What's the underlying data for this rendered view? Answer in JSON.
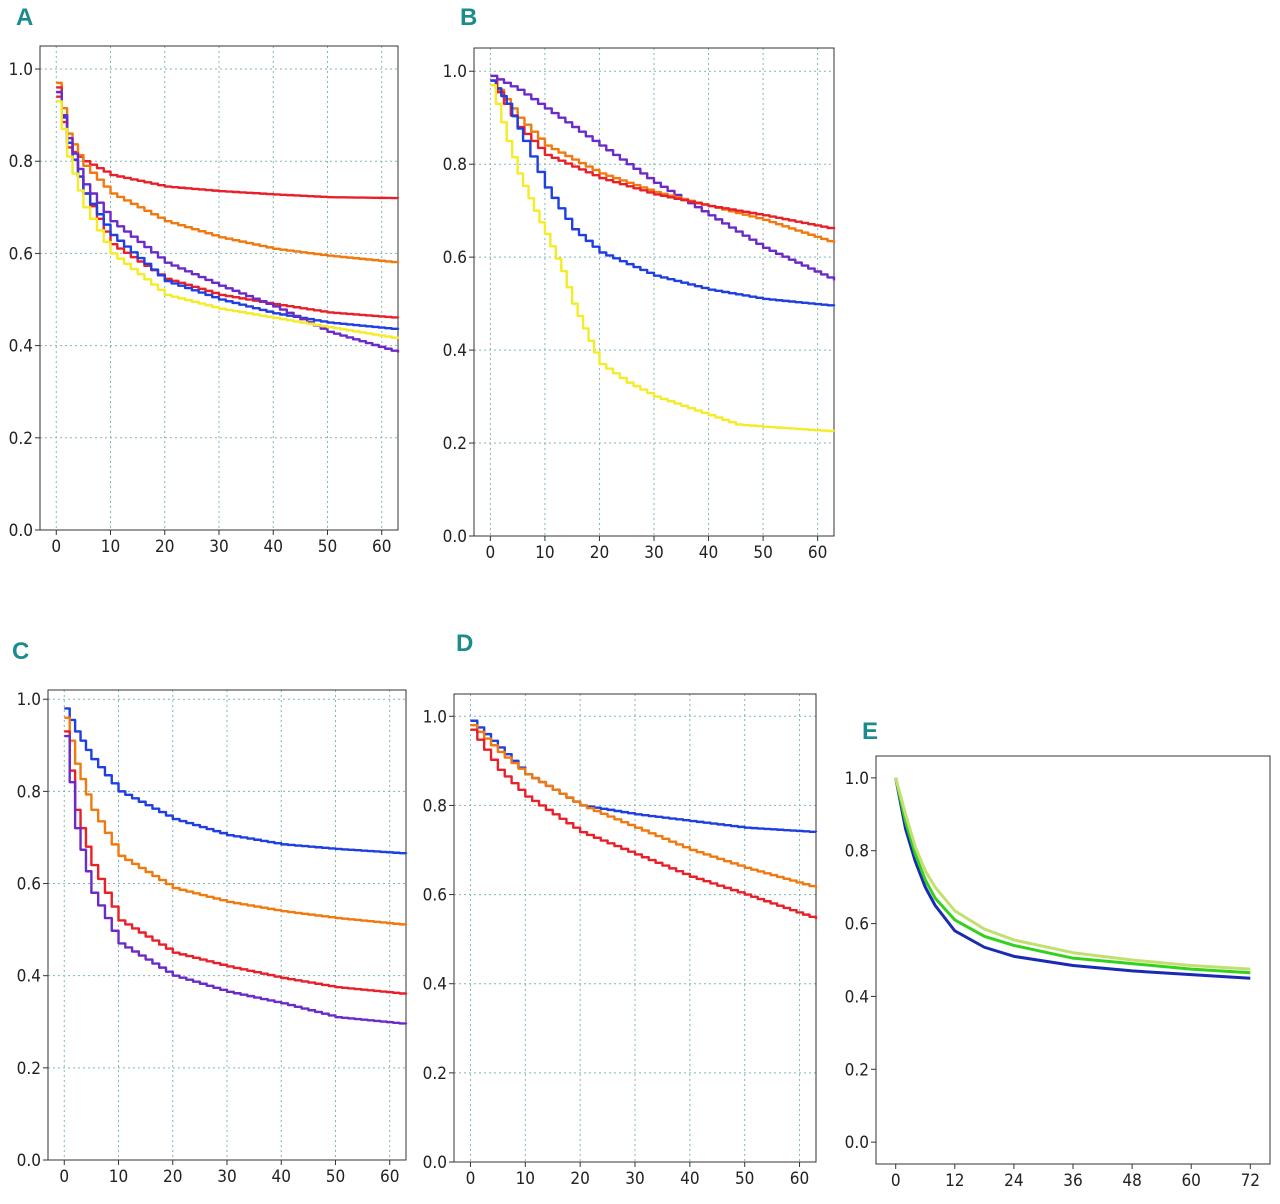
{
  "colors": {
    "red": "#e8202a",
    "orange": "#f07a10",
    "purple": "#6a2bc8",
    "blue": "#1f3fe0",
    "yellow": "#f4ec28",
    "green": "#33d11c",
    "lightgreen": "#c2e070",
    "darkblue": "#1a2ab4",
    "letter": "#1a8c8c"
  },
  "panels": [
    {
      "letter": "A"
    },
    {
      "letter": "B"
    },
    {
      "letter": "C"
    },
    {
      "letter": "D"
    },
    {
      "letter": "E"
    }
  ],
  "chart_data": [
    {
      "panel": "A",
      "type": "line",
      "step": true,
      "xlim": [
        -3,
        63
      ],
      "ylim": [
        0,
        1.05
      ],
      "xticks": [
        0,
        10,
        20,
        30,
        40,
        50,
        60
      ],
      "yticks": [
        0.0,
        0.2,
        0.4,
        0.6,
        0.8,
        1.0
      ],
      "ytick_labels": [
        "0.0",
        "0.2",
        "0.4",
        "0.6",
        "0.8",
        "1.0"
      ],
      "grid": true,
      "series": [
        {
          "color": "red",
          "x": [
            0,
            2,
            5,
            10,
            20,
            30,
            40,
            50,
            63
          ],
          "y": [
            0.94,
            0.83,
            0.8,
            0.77,
            0.745,
            0.735,
            0.728,
            0.722,
            0.72
          ]
        },
        {
          "color": "orange",
          "x": [
            0,
            2,
            5,
            10,
            20,
            30,
            40,
            50,
            63
          ],
          "y": [
            0.97,
            0.86,
            0.79,
            0.73,
            0.67,
            0.635,
            0.61,
            0.595,
            0.58
          ]
        },
        {
          "color": "red",
          "x": [
            0,
            2,
            5,
            10,
            20,
            30,
            40,
            50,
            63
          ],
          "y": [
            0.96,
            0.84,
            0.73,
            0.62,
            0.545,
            0.51,
            0.49,
            0.472,
            0.46
          ]
        },
        {
          "color": "blue",
          "x": [
            0,
            2,
            5,
            10,
            20,
            30,
            40,
            50,
            63
          ],
          "y": [
            0.95,
            0.84,
            0.73,
            0.64,
            0.54,
            0.5,
            0.47,
            0.45,
            0.435
          ]
        },
        {
          "color": "purple",
          "x": [
            0,
            2,
            5,
            10,
            20,
            30,
            40,
            50,
            63
          ],
          "y": [
            0.95,
            0.85,
            0.75,
            0.67,
            0.58,
            0.53,
            0.485,
            0.43,
            0.385
          ]
        },
        {
          "color": "yellow",
          "x": [
            0,
            2,
            5,
            10,
            20,
            30,
            40,
            50,
            63
          ],
          "y": [
            0.93,
            0.81,
            0.7,
            0.6,
            0.51,
            0.48,
            0.46,
            0.44,
            0.415
          ]
        }
      ]
    },
    {
      "panel": "B",
      "type": "line",
      "step": true,
      "xlim": [
        -3,
        63
      ],
      "ylim": [
        0,
        1.05
      ],
      "xticks": [
        0,
        10,
        20,
        30,
        40,
        50,
        60
      ],
      "yticks": [
        0.0,
        0.2,
        0.4,
        0.6,
        0.8,
        1.0
      ],
      "ytick_labels": [
        "0.0",
        "0.2",
        "0.4",
        "0.6",
        "0.8",
        "1.0"
      ],
      "grid": true,
      "series": [
        {
          "color": "purple",
          "x": [
            0,
            5,
            10,
            20,
            30,
            40,
            50,
            63
          ],
          "y": [
            0.99,
            0.96,
            0.92,
            0.84,
            0.76,
            0.69,
            0.62,
            0.55
          ]
        },
        {
          "color": "orange",
          "x": [
            0,
            5,
            10,
            20,
            30,
            40,
            50,
            63
          ],
          "y": [
            0.98,
            0.9,
            0.84,
            0.78,
            0.74,
            0.71,
            0.68,
            0.63
          ]
        },
        {
          "color": "red",
          "x": [
            0,
            5,
            10,
            20,
            30,
            40,
            50,
            63
          ],
          "y": [
            0.98,
            0.88,
            0.82,
            0.77,
            0.735,
            0.71,
            0.69,
            0.66
          ]
        },
        {
          "color": "blue",
          "x": [
            0,
            3,
            6,
            10,
            15,
            20,
            30,
            40,
            50,
            63
          ],
          "y": [
            0.98,
            0.93,
            0.85,
            0.75,
            0.66,
            0.61,
            0.56,
            0.53,
            0.51,
            0.495
          ]
        },
        {
          "color": "yellow",
          "x": [
            0,
            3,
            5,
            8,
            10,
            13,
            15,
            18,
            20,
            25,
            30,
            35,
            40,
            45,
            50,
            63
          ],
          "y": [
            0.97,
            0.85,
            0.78,
            0.7,
            0.65,
            0.57,
            0.5,
            0.42,
            0.37,
            0.33,
            0.3,
            0.28,
            0.26,
            0.24,
            0.235,
            0.225
          ]
        }
      ]
    },
    {
      "panel": "C",
      "type": "line",
      "step": true,
      "xlim": [
        -3,
        63
      ],
      "ylim": [
        0,
        1.02
      ],
      "xticks": [
        0,
        10,
        20,
        30,
        40,
        50,
        60
      ],
      "yticks": [
        0.0,
        0.2,
        0.4,
        0.6,
        0.8,
        1.0
      ],
      "ytick_labels": [
        "0.0",
        "0.2",
        "0.4",
        "0.6",
        "0.8",
        "1.0"
      ],
      "grid": true,
      "series": [
        {
          "color": "blue",
          "x": [
            0,
            2,
            5,
            10,
            20,
            30,
            40,
            50,
            63
          ],
          "y": [
            0.98,
            0.93,
            0.87,
            0.8,
            0.74,
            0.705,
            0.685,
            0.675,
            0.665
          ]
        },
        {
          "color": "orange",
          "x": [
            0,
            2,
            5,
            10,
            20,
            30,
            40,
            50,
            63
          ],
          "y": [
            0.96,
            0.86,
            0.76,
            0.66,
            0.59,
            0.56,
            0.54,
            0.525,
            0.51
          ]
        },
        {
          "color": "red",
          "x": [
            0,
            2,
            5,
            10,
            20,
            30,
            40,
            50,
            63
          ],
          "y": [
            0.93,
            0.76,
            0.64,
            0.52,
            0.45,
            0.42,
            0.395,
            0.375,
            0.36
          ]
        },
        {
          "color": "purple",
          "x": [
            0,
            2,
            5,
            10,
            20,
            30,
            40,
            50,
            63
          ],
          "y": [
            0.92,
            0.72,
            0.58,
            0.47,
            0.4,
            0.365,
            0.34,
            0.31,
            0.295
          ]
        }
      ]
    },
    {
      "panel": "D",
      "type": "line",
      "step": true,
      "xlim": [
        -3,
        63
      ],
      "ylim": [
        0,
        1.05
      ],
      "xticks": [
        0,
        10,
        20,
        30,
        40,
        50,
        60
      ],
      "yticks": [
        0.0,
        0.2,
        0.4,
        0.6,
        0.8,
        1.0
      ],
      "ytick_labels": [
        "0.0",
        "0.2",
        "0.4",
        "0.6",
        "0.8",
        "1.0"
      ],
      "grid": true,
      "series": [
        {
          "color": "blue",
          "x": [
            0,
            5,
            10,
            20,
            30,
            40,
            50,
            63
          ],
          "y": [
            0.99,
            0.93,
            0.87,
            0.8,
            0.78,
            0.765,
            0.75,
            0.74
          ]
        },
        {
          "color": "orange",
          "x": [
            0,
            5,
            10,
            20,
            30,
            40,
            50,
            63
          ],
          "y": [
            0.98,
            0.92,
            0.87,
            0.8,
            0.75,
            0.7,
            0.66,
            0.615
          ]
        },
        {
          "color": "red",
          "x": [
            0,
            5,
            10,
            20,
            30,
            40,
            50,
            63
          ],
          "y": [
            0.97,
            0.88,
            0.82,
            0.74,
            0.69,
            0.64,
            0.6,
            0.545
          ]
        }
      ]
    },
    {
      "panel": "E",
      "type": "line",
      "step": false,
      "xlim": [
        -4,
        76
      ],
      "ylim": [
        -0.06,
        1.06
      ],
      "xticks": [
        0,
        12,
        24,
        36,
        48,
        60,
        72
      ],
      "yticks": [
        0.0,
        0.2,
        0.4,
        0.6,
        0.8,
        1.0
      ],
      "ytick_labels": [
        "0.0",
        "0.2",
        "0.4",
        "0.6",
        "0.8",
        "1.0"
      ],
      "grid": false,
      "series": [
        {
          "color": "darkblue",
          "x": [
            0,
            2,
            4,
            6,
            8,
            12,
            18,
            24,
            36,
            48,
            60,
            72
          ],
          "y": [
            1.0,
            0.86,
            0.77,
            0.7,
            0.65,
            0.58,
            0.535,
            0.51,
            0.485,
            0.47,
            0.46,
            0.45
          ]
        },
        {
          "color": "green",
          "x": [
            0,
            2,
            4,
            6,
            8,
            12,
            18,
            24,
            36,
            48,
            60,
            72
          ],
          "y": [
            1.0,
            0.88,
            0.79,
            0.72,
            0.67,
            0.61,
            0.565,
            0.54,
            0.505,
            0.49,
            0.475,
            0.465
          ]
        },
        {
          "color": "lightgreen",
          "x": [
            0,
            2,
            4,
            6,
            8,
            12,
            18,
            24,
            36,
            48,
            60,
            72
          ],
          "y": [
            1.0,
            0.9,
            0.81,
            0.745,
            0.7,
            0.635,
            0.585,
            0.555,
            0.52,
            0.5,
            0.485,
            0.475
          ]
        }
      ]
    }
  ]
}
